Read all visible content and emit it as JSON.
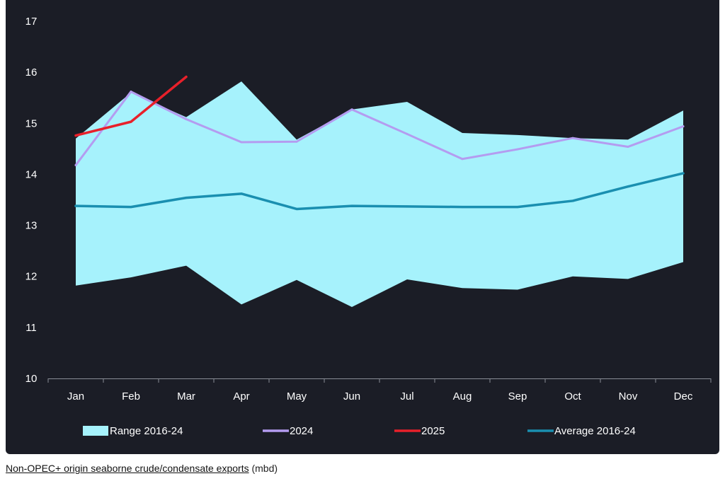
{
  "chart_data": {
    "type": "area",
    "categories": [
      "Jan",
      "Feb",
      "Mar",
      "Apr",
      "May",
      "Jun",
      "Jul",
      "Aug",
      "Sep",
      "Oct",
      "Nov",
      "Dec"
    ],
    "ylim": [
      10,
      17
    ],
    "yticks": [
      10,
      11,
      12,
      13,
      14,
      15,
      16,
      17
    ],
    "range": {
      "name": "Range 2016-24",
      "color": "#a6f2fc",
      "low": [
        11.82,
        11.98,
        12.21,
        11.45,
        11.93,
        11.4,
        11.94,
        11.77,
        11.74,
        12.0,
        11.95,
        12.28
      ],
      "high": [
        14.7,
        15.6,
        15.12,
        15.82,
        14.68,
        15.27,
        15.42,
        14.81,
        14.77,
        14.71,
        14.68,
        15.25
      ]
    },
    "series": [
      {
        "name": "2024",
        "color": "#b49cf0",
        "values": [
          14.18,
          15.62,
          15.08,
          14.63,
          14.64,
          15.27,
          14.79,
          14.3,
          14.49,
          14.71,
          14.54,
          14.94
        ]
      },
      {
        "name": "2025",
        "color": "#e8202a",
        "values": [
          14.76,
          15.03,
          15.91,
          null,
          null,
          null,
          null,
          null,
          null,
          null,
          null,
          null
        ]
      },
      {
        "name": "Average 2016-24",
        "color": "#1a8fb0",
        "values": [
          13.38,
          13.36,
          13.54,
          13.62,
          13.32,
          13.38,
          13.37,
          13.36,
          13.36,
          13.48,
          13.76,
          14.02
        ]
      }
    ],
    "legend": [
      "Range 2016-24",
      "2024",
      "2025",
      "Average 2016-24"
    ],
    "legend_position": "bottom",
    "grid": false
  },
  "caption": {
    "link_text": "Non-OPEC+ origin seaborne crude/condensate exports",
    "unit_text": " (mbd)"
  }
}
